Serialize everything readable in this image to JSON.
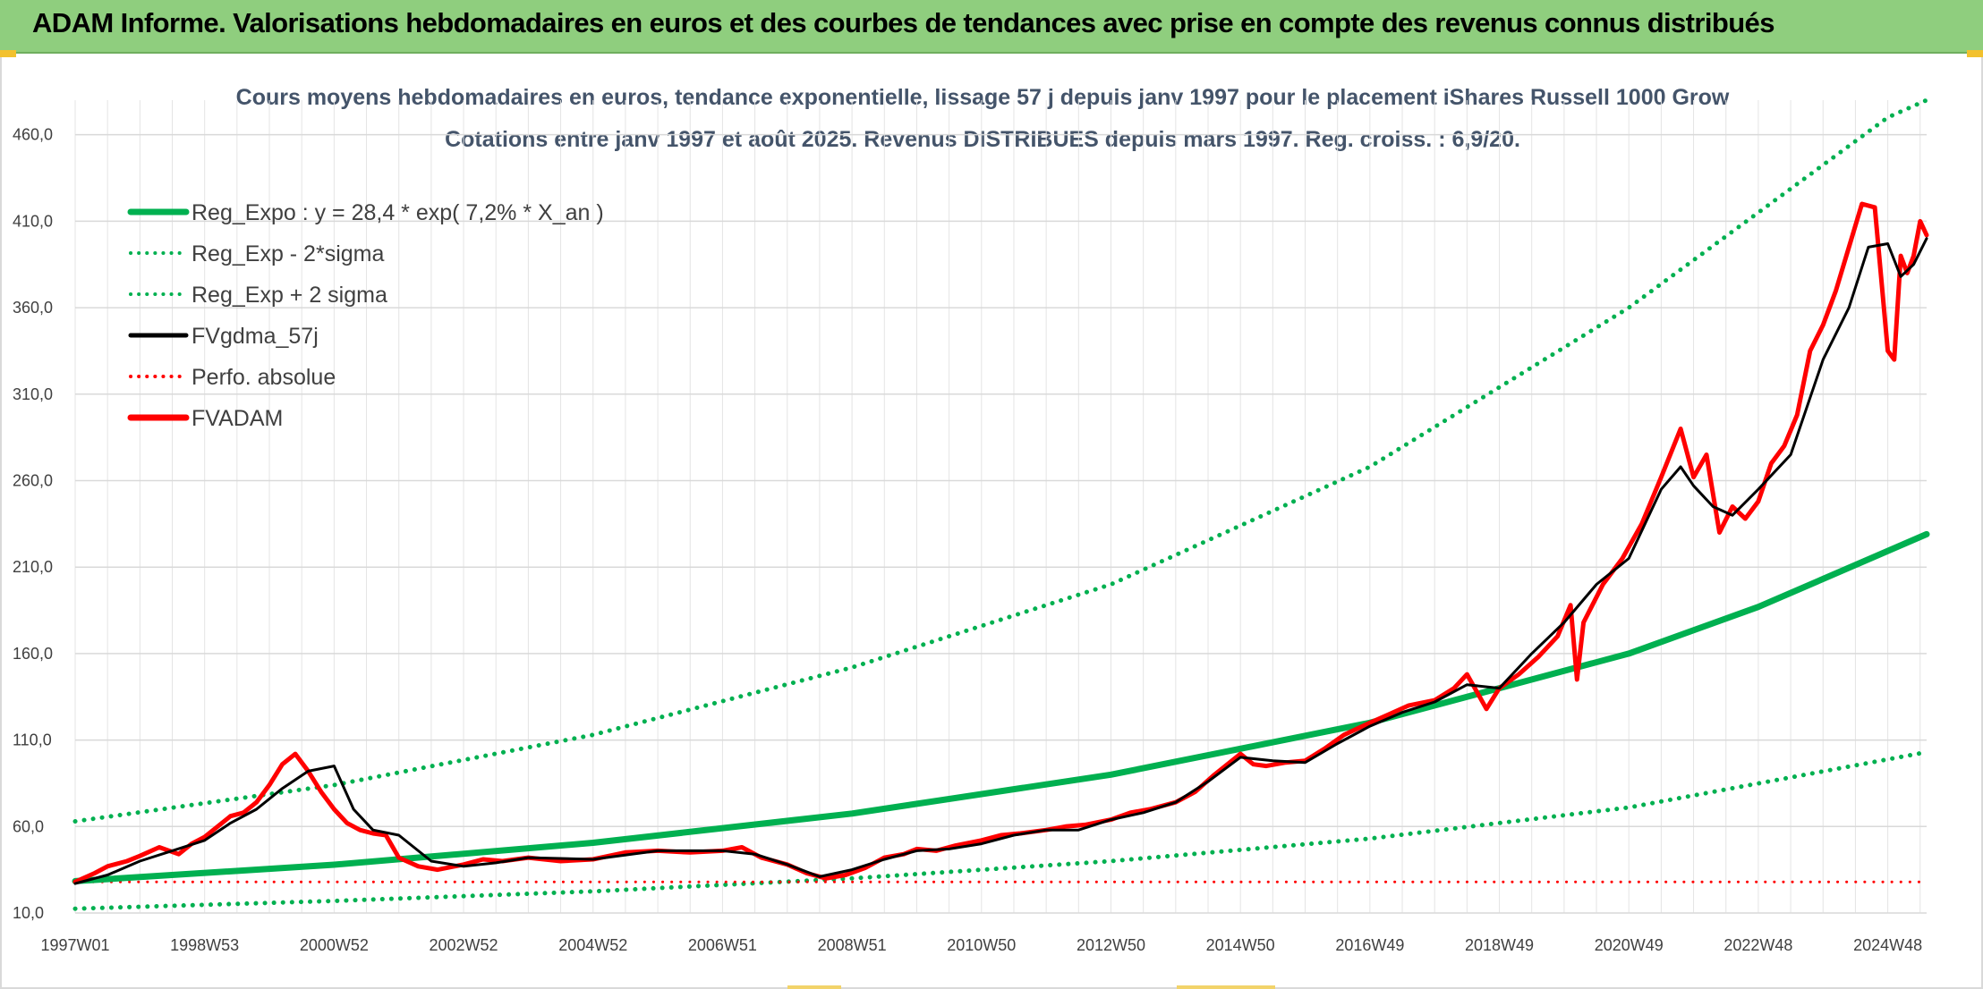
{
  "header": {
    "title": "ADAM Informe. Valorisations hebdomadaires en euros et des courbes de tendances avec prise en compte des revenus connus distribués"
  },
  "colors": {
    "header_bg": "#8fce7e",
    "trend_green": "#00b050",
    "smooth_black": "#000000",
    "value_red": "#ff0000",
    "title_slate": "#44546a",
    "grid": "#d9d9d9"
  },
  "chart_data": {
    "type": "line",
    "title_line1": "Cours moyens hebdomadaires en euros, tendance exponentielle, lissage 57 j depuis janv 1997 pour le placement iShares Russell 1000 Grow",
    "title_line2": "Cotations entre janv 1997 et août 2025. Revenus DISTRIBUES depuis mars 1997. Reg. croiss. : 6,9/20.",
    "x_range": [
      1997.0,
      2025.6
    ],
    "ylim": [
      10,
      480
    ],
    "y_ticks": [
      "10,0",
      "60,0",
      "110,0",
      "160,0",
      "210,0",
      "260,0",
      "310,0",
      "360,0",
      "410,0",
      "460,0"
    ],
    "x_ticks": [
      {
        "label": "1997W01",
        "x": 1997.0
      },
      {
        "label": "1998W53",
        "x": 1999.0
      },
      {
        "label": "2000W52",
        "x": 2001.0
      },
      {
        "label": "2002W52",
        "x": 2003.0
      },
      {
        "label": "2004W52",
        "x": 2005.0
      },
      {
        "label": "2006W51",
        "x": 2007.0
      },
      {
        "label": "2008W51",
        "x": 2009.0
      },
      {
        "label": "2010W50",
        "x": 2011.0
      },
      {
        "label": "2012W50",
        "x": 2013.0
      },
      {
        "label": "2014W50",
        "x": 2015.0
      },
      {
        "label": "2016W49",
        "x": 2017.0
      },
      {
        "label": "2018W49",
        "x": 2019.0
      },
      {
        "label": "2020W49",
        "x": 2021.0
      },
      {
        "label": "2022W48",
        "x": 2023.0
      },
      {
        "label": "2024W48",
        "x": 2025.0
      }
    ],
    "grid": true,
    "legend_position": "top-left",
    "series": [
      {
        "name": "Reg_Expo : y = 28,4 * exp( 7,2% *  X_an )",
        "style": "solid",
        "color": "#00b050",
        "x": [
          1997.0,
          2001.0,
          2005.0,
          2009.0,
          2013.0,
          2017.0,
          2019.0,
          2021.0,
          2023.0,
          2025.6
        ],
        "values": [
          28.4,
          37.9,
          50.6,
          67.5,
          90.0,
          120.0,
          140.0,
          160.0,
          187.0,
          229.0
        ]
      },
      {
        "name": "Reg_Exp - 2*sigma",
        "style": "dotted",
        "color": "#00b050",
        "x": [
          1997.0,
          2001.0,
          2005.0,
          2009.0,
          2013.0,
          2017.0,
          2021.0,
          2025.6
        ],
        "values": [
          12.5,
          17.0,
          22.5,
          30.0,
          40.0,
          53.0,
          71.0,
          103.0
        ]
      },
      {
        "name": "Reg_Exp + 2 sigma",
        "style": "dotted",
        "color": "#00b050",
        "x": [
          1997.0,
          2001.0,
          2005.0,
          2009.0,
          2013.0,
          2017.0,
          2021.0,
          2025.0,
          2025.6
        ],
        "values": [
          63.0,
          84.0,
          113.0,
          152.0,
          200.0,
          268.0,
          360.0,
          470.0,
          480.0
        ]
      },
      {
        "name": "FVgdma_57j",
        "style": "solid",
        "color": "#000000",
        "x": [
          1997.0,
          1997.5,
          1998.0,
          1998.5,
          1999.0,
          1999.4,
          1999.8,
          2000.2,
          2000.6,
          2001.0,
          2001.3,
          2001.6,
          2002.0,
          2002.5,
          2003.0,
          2003.5,
          2004.0,
          2005.0,
          2006.0,
          2007.0,
          2007.5,
          2008.0,
          2008.5,
          2009.0,
          2009.5,
          2010.0,
          2010.5,
          2011.0,
          2011.5,
          2012.0,
          2012.5,
          2013.0,
          2013.5,
          2014.0,
          2014.5,
          2015.0,
          2015.5,
          2016.0,
          2016.5,
          2017.0,
          2017.5,
          2018.0,
          2018.5,
          2019.0,
          2019.5,
          2020.0,
          2020.5,
          2021.0,
          2021.5,
          2021.8,
          2022.0,
          2022.3,
          2022.6,
          2023.0,
          2023.5,
          2024.0,
          2024.4,
          2024.7,
          2025.0,
          2025.2,
          2025.4,
          2025.6
        ],
        "values": [
          27,
          32,
          40,
          46,
          52,
          62,
          70,
          82,
          92,
          95,
          70,
          58,
          55,
          40,
          37,
          39,
          42,
          41,
          46,
          46,
          44,
          38,
          31,
          35,
          41,
          46,
          47,
          50,
          55,
          58,
          58,
          64,
          68,
          74,
          86,
          100,
          98,
          97,
          108,
          118,
          126,
          132,
          142,
          140,
          160,
          178,
          200,
          215,
          255,
          268,
          257,
          245,
          240,
          255,
          275,
          330,
          360,
          395,
          397,
          378,
          385,
          400
        ]
      },
      {
        "name": "Perfo. absolue",
        "style": "dotted",
        "color": "#ff0000",
        "x": [
          1997.0,
          2025.6
        ],
        "values": [
          28,
          28
        ]
      },
      {
        "name": "FVADAM",
        "style": "solid",
        "color": "#ff0000",
        "x": [
          1997.0,
          1997.3,
          1997.5,
          1997.8,
          1998.0,
          1998.3,
          1998.6,
          1998.8,
          1999.0,
          1999.2,
          1999.4,
          1999.6,
          1999.8,
          2000.0,
          2000.2,
          2000.4,
          2000.6,
          2000.8,
          2001.0,
          2001.2,
          2001.4,
          2001.6,
          2001.8,
          2002.0,
          2002.3,
          2002.6,
          2003.0,
          2003.3,
          2003.6,
          2004.0,
          2004.5,
          2005.0,
          2005.5,
          2006.0,
          2006.5,
          2007.0,
          2007.3,
          2007.6,
          2008.0,
          2008.3,
          2008.6,
          2008.9,
          2009.2,
          2009.5,
          2009.8,
          2010.0,
          2010.3,
          2010.6,
          2011.0,
          2011.3,
          2011.6,
          2012.0,
          2012.3,
          2012.6,
          2013.0,
          2013.3,
          2013.6,
          2014.0,
          2014.3,
          2014.6,
          2015.0,
          2015.2,
          2015.4,
          2015.7,
          2016.0,
          2016.3,
          2016.6,
          2017.0,
          2017.3,
          2017.6,
          2018.0,
          2018.3,
          2018.5,
          2018.8,
          2019.0,
          2019.3,
          2019.6,
          2019.9,
          2020.1,
          2020.2,
          2020.3,
          2020.6,
          2020.9,
          2021.2,
          2021.5,
          2021.8,
          2022.0,
          2022.2,
          2022.4,
          2022.6,
          2022.8,
          2023.0,
          2023.2,
          2023.4,
          2023.6,
          2023.8,
          2024.0,
          2024.2,
          2024.4,
          2024.6,
          2024.8,
          2025.0,
          2025.1,
          2025.2,
          2025.3,
          2025.4,
          2025.5,
          2025.6
        ],
        "values": [
          28,
          33,
          37,
          40,
          43,
          48,
          44,
          50,
          54,
          60,
          66,
          68,
          74,
          84,
          96,
          102,
          92,
          80,
          70,
          62,
          58,
          56,
          55,
          42,
          37,
          35,
          38,
          41,
          40,
          42,
          40,
          41,
          45,
          46,
          45,
          46,
          48,
          42,
          38,
          33,
          30,
          32,
          36,
          42,
          44,
          47,
          46,
          49,
          52,
          55,
          56,
          58,
          60,
          61,
          64,
          68,
          70,
          74,
          80,
          90,
          102,
          96,
          95,
          97,
          98,
          105,
          113,
          120,
          125,
          130,
          133,
          140,
          148,
          128,
          140,
          148,
          158,
          170,
          188,
          145,
          178,
          200,
          215,
          235,
          262,
          290,
          262,
          275,
          230,
          245,
          238,
          248,
          270,
          280,
          298,
          335,
          350,
          370,
          395,
          420,
          418,
          335,
          330,
          390,
          380,
          390,
          410,
          402
        ]
      }
    ]
  }
}
